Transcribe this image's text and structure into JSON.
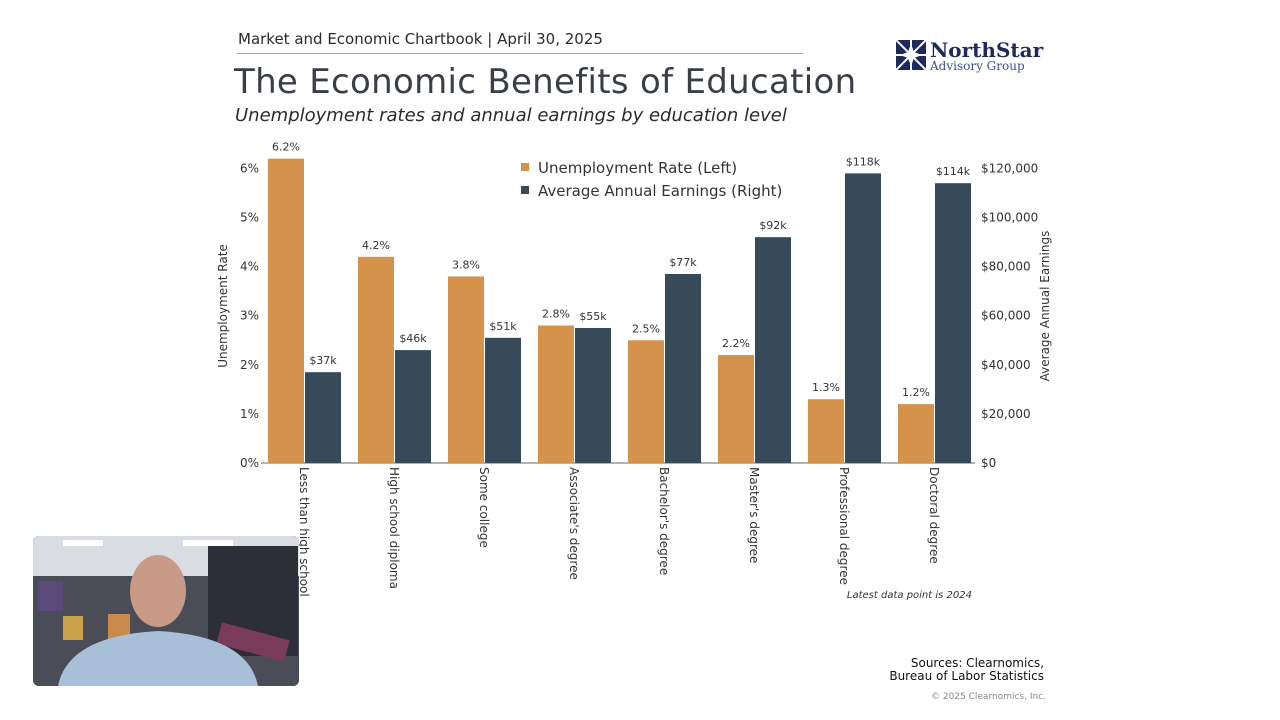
{
  "header": {
    "chartbook": "Market and Economic Chartbook | April 30, 2025",
    "title": "The Economic Benefits of Education",
    "subtitle": "Unemployment rates and annual earnings by education level"
  },
  "logo": {
    "name": "NorthStar",
    "tagline": "Advisory Group"
  },
  "chart_data": {
    "type": "bar",
    "categories": [
      "Less than high school",
      "High school diploma",
      "Some college",
      "Associate's degree",
      "Bachelor's degree",
      "Master's degree",
      "Professional degree",
      "Doctoral degree"
    ],
    "series": [
      {
        "name": "Unemployment Rate (Left)",
        "axis": "left",
        "color": "#D4924A",
        "values": [
          6.2,
          4.2,
          3.8,
          2.8,
          2.5,
          2.2,
          1.3,
          1.2
        ],
        "labels": [
          "6.2%",
          "4.2%",
          "3.8%",
          "2.8%",
          "2.5%",
          "2.2%",
          "1.3%",
          "1.2%"
        ]
      },
      {
        "name": "Average Annual Earnings (Right)",
        "axis": "right",
        "color": "#364A5A",
        "values": [
          37000,
          46000,
          51000,
          55000,
          77000,
          92000,
          118000,
          114000
        ],
        "labels": [
          "$37k",
          "$46k",
          "$51k",
          "$55k",
          "$77k",
          "$92k",
          "$118k",
          "$114k"
        ]
      }
    ],
    "ylabel_left": "Unemployment Rate",
    "ylabel_right": "Average Annual Earnings",
    "ylim_left": [
      0,
      6
    ],
    "ylim_right": [
      0,
      120000
    ],
    "yticks_left": [
      "0%",
      "1%",
      "2%",
      "3%",
      "4%",
      "5%",
      "6%"
    ],
    "yticks_right": [
      "$0",
      "$20,000",
      "$40,000",
      "$60,000",
      "$80,000",
      "$100,000",
      "$120,000"
    ],
    "legend_position": "top-center",
    "grid": false
  },
  "footnote": "Latest data point is 2024",
  "sources": {
    "line1": "Sources: Clearnomics,",
    "line2": "Bureau of Labor Statistics"
  },
  "copyright": "© 2025 Clearnomics, Inc."
}
